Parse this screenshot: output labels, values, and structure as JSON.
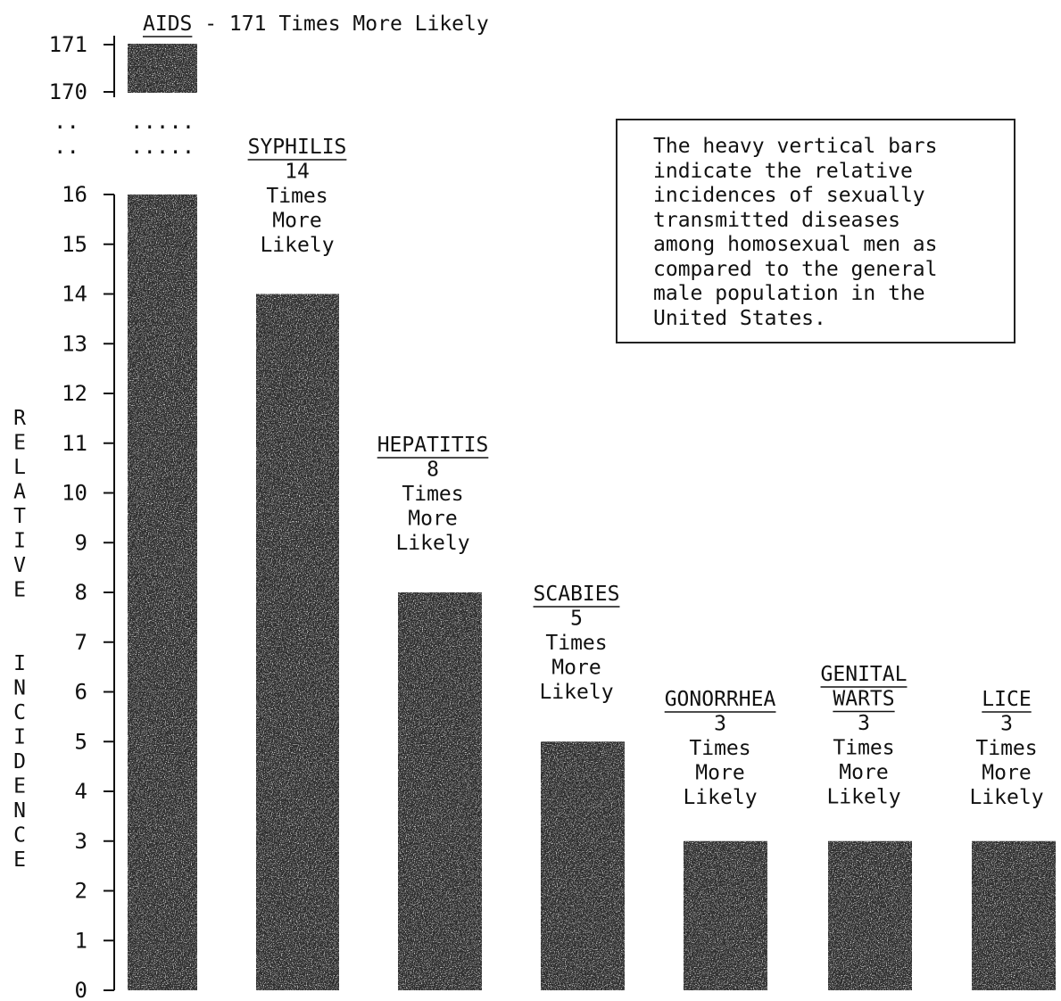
{
  "chart_data": {
    "type": "bar",
    "ylabel": "RELATIVE INCIDENCE",
    "ylim": [
      0,
      16
    ],
    "axis_break": {
      "lower_top": 16,
      "upper_ticks": [
        "170",
        "171"
      ]
    },
    "y_ticks": [
      "0",
      "1",
      "2",
      "3",
      "4",
      "5",
      "6",
      "7",
      "8",
      "9",
      "10",
      "11",
      "12",
      "13",
      "14",
      "15",
      "16"
    ],
    "break_dots": [
      "..",
      "..",
      ".....",
      "....."
    ],
    "categories": [
      {
        "name": "AIDS",
        "value": 171,
        "label": [
          "AIDS - 171 Times More Likely"
        ]
      },
      {
        "name": "SYPHILIS",
        "value": 14,
        "label": [
          "SYPHILIS",
          "14",
          "Times",
          "More",
          "Likely"
        ]
      },
      {
        "name": "HEPATITIS",
        "value": 8,
        "label": [
          "HEPATITIS",
          "8",
          "Times",
          "More",
          "Likely"
        ]
      },
      {
        "name": "SCABIES",
        "value": 5,
        "label": [
          "SCABIES",
          "5",
          "Times",
          "More",
          "Likely"
        ]
      },
      {
        "name": "GONORRHEA",
        "value": 3,
        "label": [
          "GONORRHEA",
          "3",
          "Times",
          "More",
          "Likely"
        ]
      },
      {
        "name": "GENITAL WARTS",
        "value": 3,
        "label": [
          "GENITAL",
          "WARTS",
          "3",
          "Times",
          "More",
          "Likely"
        ]
      },
      {
        "name": "LICE",
        "value": 3,
        "label": [
          "LICE",
          "3",
          "Times",
          "More",
          "Likely"
        ]
      }
    ],
    "note": "The heavy vertical bars\nindicate the relative\nincidences of sexually\ntransmitted diseases\namong homosexual men as\ncompared to the general\nmale population in the\nUnited States.",
    "colors": {
      "bar": "#2f2f2f",
      "text": "#111111",
      "background": "#ffffff"
    }
  }
}
